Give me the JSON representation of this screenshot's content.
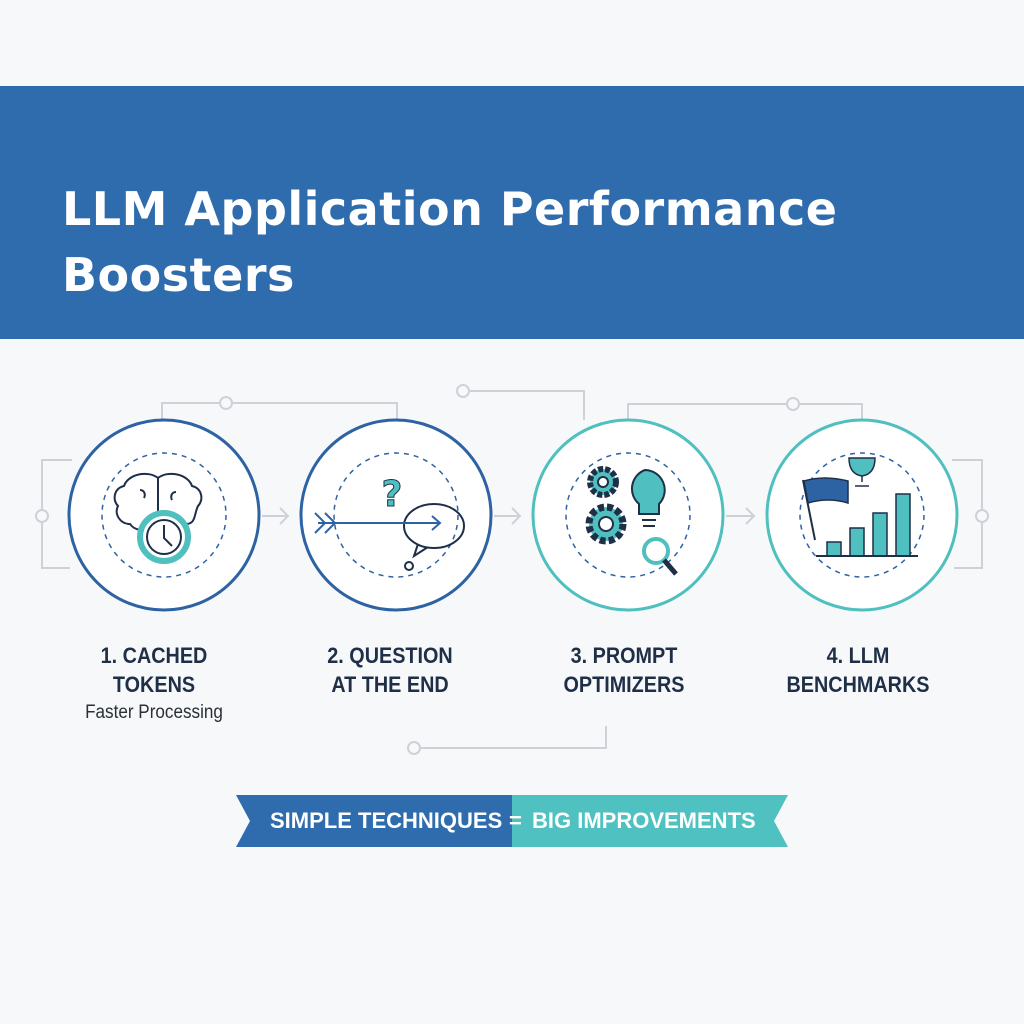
{
  "header": {
    "title_line1": "LLM Application Performance",
    "title_line2": "Boosters"
  },
  "steps": [
    {
      "line1": "1. CACHED",
      "line2": "TOKENS",
      "subtitle": "Faster Processing",
      "icon": "brain-clock-icon",
      "ring_color": "#2d62a3"
    },
    {
      "line1": "2. QUESTION",
      "line2": "AT THE END",
      "icon": "question-arrow-speech-bubble-icon",
      "ring_color": "#2d62a3"
    },
    {
      "line1": "3. PROMPT",
      "line2": "OPTIMIZERS",
      "icon": "gears-lightbulb-magnifier-icon",
      "ring_color": "#4fbfbf"
    },
    {
      "line1": "4. LLM",
      "line2": "BENCHMARKS",
      "icon": "flag-trophy-bar-chart-icon",
      "ring_color": "#4fbfbf"
    }
  ],
  "banner": {
    "left_text": "SIMPLE TECHNIQUES",
    "separator": "=",
    "right_text": "BIG IMPROVEMENTS",
    "left_color": "#2f6cad",
    "right_color": "#4fc1c0"
  },
  "colors": {
    "header": "#2f6cad",
    "dark_text": "#1f2f48",
    "teal": "#4fbfbf",
    "connector": "#cdd2d8"
  }
}
